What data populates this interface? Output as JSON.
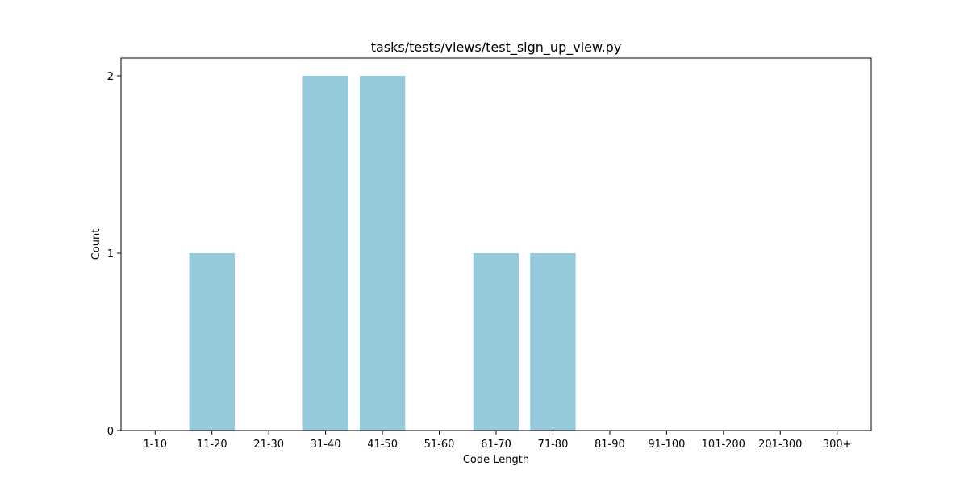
{
  "chart_data": {
    "type": "bar",
    "title": "tasks/tests/views/test_sign_up_view.py",
    "xlabel": "Code Length",
    "ylabel": "Count",
    "categories": [
      "1-10",
      "11-20",
      "21-30",
      "31-40",
      "41-50",
      "51-60",
      "61-70",
      "71-80",
      "81-90",
      "91-100",
      "101-200",
      "201-300",
      "300+"
    ],
    "values": [
      0,
      1,
      0,
      2,
      2,
      0,
      1,
      1,
      0,
      0,
      0,
      0,
      0
    ],
    "ylim": [
      0,
      2.1
    ],
    "yticks": [
      0,
      1,
      2
    ],
    "bar_color": "#96c9dc",
    "grid": false,
    "legend": "none"
  }
}
